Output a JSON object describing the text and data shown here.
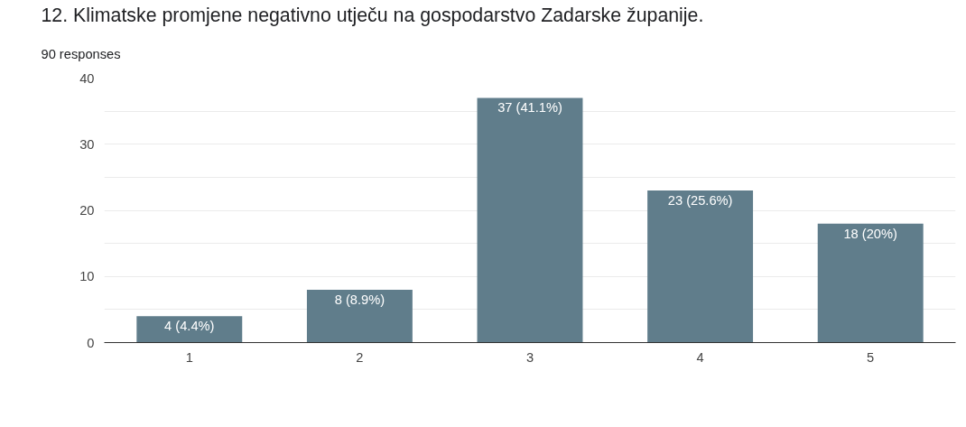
{
  "chart_data": {
    "type": "bar",
    "title": "12. Klimatske promjene negativno utječu na gospodarstvo Zadarske županije.",
    "subtitle": "90 responses",
    "categories": [
      "1",
      "2",
      "3",
      "4",
      "5"
    ],
    "values": [
      4,
      8,
      37,
      23,
      18
    ],
    "value_labels": [
      "4 (4.4%)",
      "8 (8.9%)",
      "37 (41.1%)",
      "23 (25.6%)",
      "18 (20%)"
    ],
    "color": "#607d8b",
    "ylim": [
      0,
      40
    ],
    "yticks": [
      0,
      {
        "value": 5,
        "label": null
      },
      10,
      {
        "value": 15,
        "label": null
      },
      20,
      {
        "value": 25,
        "label": null
      },
      30,
      {
        "value": 35,
        "label": null
      },
      40
    ],
    "grid": "y"
  }
}
